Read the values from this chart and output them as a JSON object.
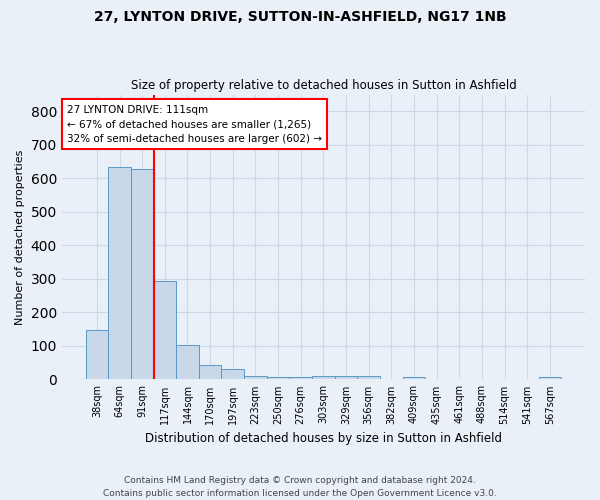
{
  "title_line1": "27, LYNTON DRIVE, SUTTON-IN-ASHFIELD, NG17 1NB",
  "title_line2": "Size of property relative to detached houses in Sutton in Ashfield",
  "xlabel": "Distribution of detached houses by size in Sutton in Ashfield",
  "ylabel": "Number of detached properties",
  "footnote": "Contains HM Land Registry data © Crown copyright and database right 2024.\nContains public sector information licensed under the Open Government Licence v3.0.",
  "bar_labels": [
    "38sqm",
    "64sqm",
    "91sqm",
    "117sqm",
    "144sqm",
    "170sqm",
    "197sqm",
    "223sqm",
    "250sqm",
    "276sqm",
    "303sqm",
    "329sqm",
    "356sqm",
    "382sqm",
    "409sqm",
    "435sqm",
    "461sqm",
    "488sqm",
    "514sqm",
    "541sqm",
    "567sqm"
  ],
  "bar_values": [
    148,
    634,
    628,
    293,
    102,
    44,
    30,
    10,
    8,
    8,
    10,
    10,
    10,
    0,
    8,
    0,
    0,
    0,
    0,
    0,
    8
  ],
  "bar_color": "#c8d8e8",
  "bar_edge_color": "#5a9ac8",
  "red_line_x": 2.5,
  "annotation_text": "27 LYNTON DRIVE: 111sqm\n← 67% of detached houses are smaller (1,265)\n32% of semi-detached houses are larger (602) →",
  "annotation_box_color": "white",
  "annotation_box_edge": "red",
  "ylim": [
    0,
    850
  ],
  "yticks": [
    0,
    100,
    200,
    300,
    400,
    500,
    600,
    700,
    800
  ],
  "grid_color": "#d0d8e8",
  "bg_color": "#eaf0f8"
}
